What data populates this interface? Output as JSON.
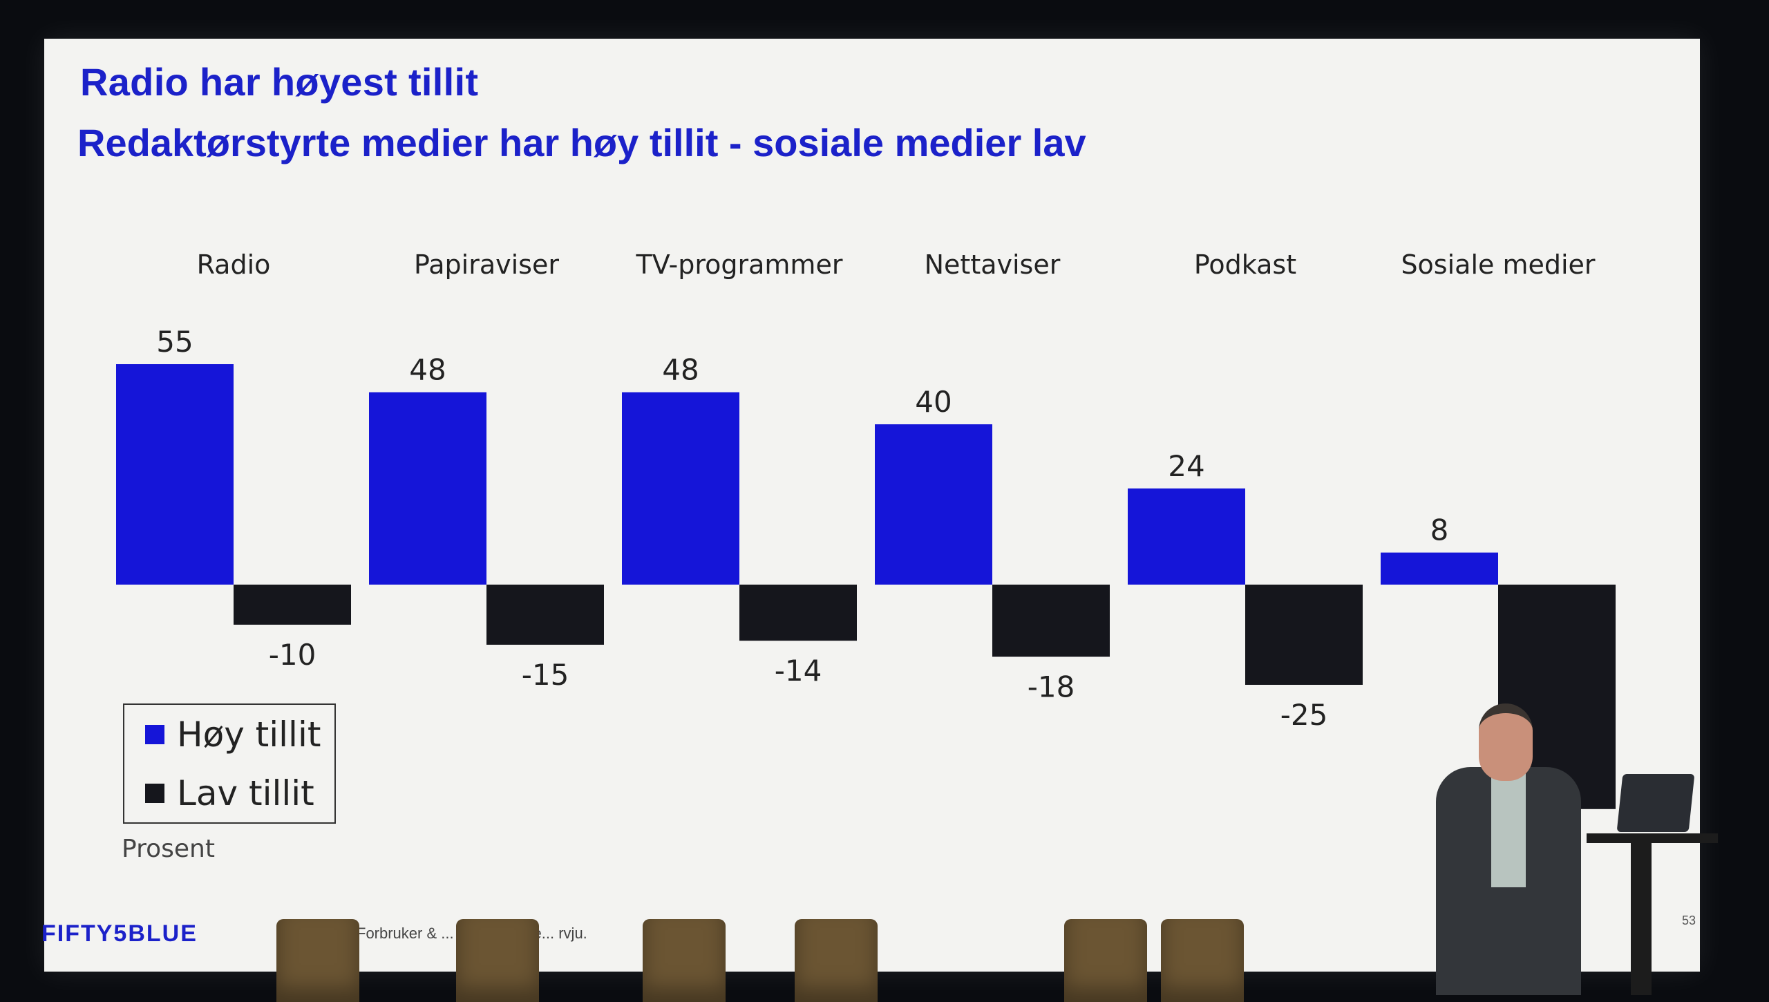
{
  "slide": {
    "title": "Radio har høyest tillit",
    "subtitle": "Redaktørstyrte medier har høy tillit - sosiale medier lav",
    "unit_label": "Prosent",
    "brand": "FIFTY5BLUE",
    "source_text": "Forbruker & ... Q4 2025 me... rvju.",
    "page_number": "53"
  },
  "legend": {
    "high_label": "Høy tillit",
    "low_label": "Lav tillit"
  },
  "colors": {
    "high": "#1515d8",
    "low": "#15161c",
    "title": "#1b21c9"
  },
  "chart_data": {
    "type": "bar",
    "categories": [
      "Radio",
      "Papiraviser",
      "TV-programmer",
      "Nettaviser",
      "Podkast",
      "Sosiale medier"
    ],
    "series": [
      {
        "name": "Høy tillit",
        "values": [
          55,
          48,
          48,
          40,
          24,
          8
        ]
      },
      {
        "name": "Lav tillit",
        "values": [
          -10,
          -15,
          -14,
          -18,
          -25,
          -56
        ]
      }
    ],
    "value_labels": {
      "high": [
        "55",
        "48",
        "48",
        "40",
        "24",
        "8"
      ],
      "low": [
        "-10",
        "-15",
        "-14",
        "-18",
        "-25",
        "-56"
      ]
    },
    "ylabel": "Prosent",
    "grid": false,
    "legend_position": "bottom-left"
  }
}
